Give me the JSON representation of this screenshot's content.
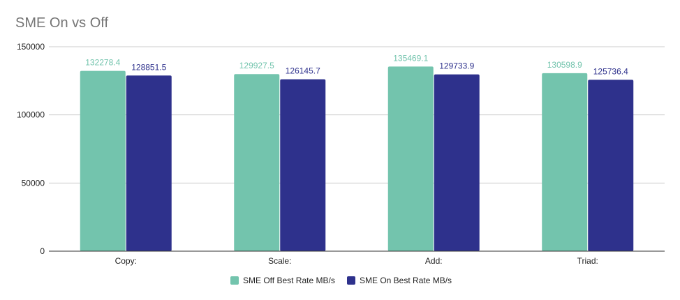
{
  "chart_data": {
    "type": "bar",
    "title": "SME On vs Off",
    "categories": [
      "Copy:",
      "Scale:",
      "Add:",
      "Triad:"
    ],
    "series": [
      {
        "name": "SME Off Best Rate MB/s",
        "values": [
          132278.4,
          129927.5,
          135469.1,
          130598.9
        ],
        "labels": [
          "132278.4",
          "129927.5",
          "135469.1",
          "130598.9"
        ],
        "color": "#73c4ad"
      },
      {
        "name": "SME On Best Rate MB/s",
        "values": [
          128851.5,
          126145.7,
          129733.9,
          125736.4
        ],
        "labels": [
          "128851.5",
          "126145.7",
          "129733.9",
          "125736.4"
        ],
        "color": "#2e318c"
      }
    ],
    "y_ticks": [
      0,
      50000,
      100000,
      150000
    ],
    "y_tick_labels": [
      "0",
      "50000",
      "100000",
      "150000"
    ],
    "ylim": [
      0,
      150000
    ],
    "grid": true,
    "legend_position": "bottom"
  }
}
